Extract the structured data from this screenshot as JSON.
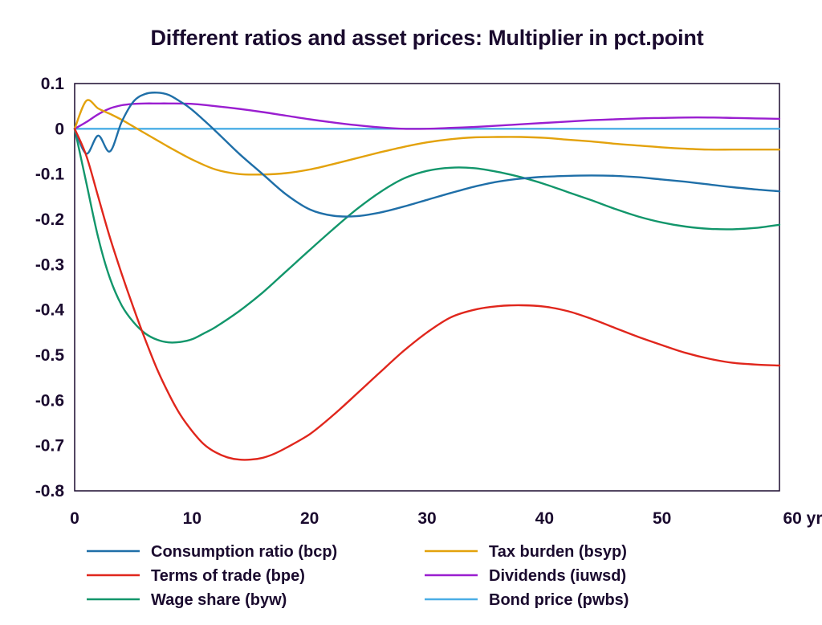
{
  "chart_data": {
    "type": "line",
    "title": "Different ratios and asset prices: Multiplier in pct.point",
    "x_unit_label": "yr",
    "xlim": [
      0,
      60
    ],
    "ylim": [
      -0.8,
      0.1
    ],
    "x_ticks": [
      0,
      10,
      20,
      30,
      40,
      50,
      60
    ],
    "x_tick_labels": [
      "0",
      "10",
      "20",
      "30",
      "40",
      "50",
      "60 yr"
    ],
    "y_ticks": [
      0.1,
      0,
      -0.1,
      -0.2,
      -0.3,
      -0.4,
      -0.5,
      -0.6,
      -0.7,
      -0.8
    ],
    "y_tick_labels": [
      "0.1",
      "0",
      "-0.1",
      "-0.2",
      "-0.3",
      "-0.4",
      "-0.5",
      "-0.6",
      "-0.7",
      "-0.8"
    ],
    "grid": false,
    "zero_line": true,
    "legend_position": "bottom",
    "series": [
      {
        "name": "Consumption ratio (bcp)",
        "color": "#1f6fa8",
        "x": [
          0,
          1,
          2,
          3,
          4,
          5,
          6,
          7,
          8,
          9,
          10,
          12,
          14,
          16,
          18,
          20,
          22,
          24,
          26,
          28,
          30,
          32,
          34,
          36,
          38,
          40,
          42,
          44,
          46,
          48,
          50,
          52,
          54,
          56,
          58,
          60
        ],
        "y": [
          0,
          -0.055,
          -0.015,
          -0.05,
          0.015,
          0.06,
          0.077,
          0.08,
          0.075,
          0.06,
          0.042,
          -0.005,
          -0.055,
          -0.1,
          -0.145,
          -0.178,
          -0.192,
          -0.193,
          -0.185,
          -0.172,
          -0.157,
          -0.142,
          -0.128,
          -0.117,
          -0.11,
          -0.106,
          -0.104,
          -0.103,
          -0.104,
          -0.107,
          -0.112,
          -0.117,
          -0.123,
          -0.129,
          -0.134,
          -0.138
        ]
      },
      {
        "name": "Terms of trade (bpe)",
        "color": "#e0261c",
        "x": [
          0,
          1,
          2,
          3,
          4,
          5,
          6,
          7,
          8,
          9,
          10,
          11,
          12,
          13,
          14,
          15,
          16,
          17,
          18,
          20,
          22,
          24,
          26,
          28,
          30,
          32,
          34,
          36,
          38,
          40,
          42,
          44,
          46,
          48,
          50,
          52,
          54,
          56,
          58,
          60
        ],
        "y": [
          0,
          -0.06,
          -0.15,
          -0.24,
          -0.32,
          -0.395,
          -0.465,
          -0.53,
          -0.585,
          -0.632,
          -0.668,
          -0.697,
          -0.715,
          -0.726,
          -0.731,
          -0.731,
          -0.727,
          -0.718,
          -0.705,
          -0.675,
          -0.633,
          -0.586,
          -0.538,
          -0.491,
          -0.45,
          -0.417,
          -0.4,
          -0.392,
          -0.39,
          -0.393,
          -0.403,
          -0.42,
          -0.44,
          -0.46,
          -0.478,
          -0.495,
          -0.508,
          -0.517,
          -0.521,
          -0.523
        ]
      },
      {
        "name": "Wage share (byw)",
        "color": "#12966b",
        "x": [
          0,
          1,
          2,
          3,
          4,
          5,
          6,
          7,
          8,
          9,
          10,
          11,
          12,
          14,
          16,
          18,
          20,
          22,
          24,
          26,
          28,
          30,
          32,
          34,
          36,
          38,
          40,
          42,
          44,
          46,
          48,
          50,
          52,
          54,
          56,
          58,
          60
        ],
        "y": [
          0,
          -0.12,
          -0.24,
          -0.33,
          -0.39,
          -0.427,
          -0.452,
          -0.466,
          -0.472,
          -0.471,
          -0.465,
          -0.452,
          -0.438,
          -0.403,
          -0.362,
          -0.315,
          -0.268,
          -0.222,
          -0.178,
          -0.14,
          -0.11,
          -0.093,
          -0.086,
          -0.087,
          -0.095,
          -0.107,
          -0.122,
          -0.14,
          -0.158,
          -0.177,
          -0.194,
          -0.207,
          -0.216,
          -0.221,
          -0.222,
          -0.219,
          -0.212
        ]
      },
      {
        "name": "Tax burden (bsyp)",
        "color": "#e3a20c",
        "x": [
          0,
          1,
          2,
          3,
          4,
          5,
          6,
          7,
          8,
          10,
          12,
          14,
          16,
          18,
          20,
          22,
          24,
          26,
          28,
          30,
          32,
          34,
          36,
          38,
          40,
          42,
          44,
          46,
          48,
          50,
          52,
          54,
          56,
          58,
          60
        ],
        "y": [
          0,
          0.062,
          0.045,
          0.033,
          0.02,
          0.005,
          -0.01,
          -0.025,
          -0.04,
          -0.068,
          -0.09,
          -0.1,
          -0.101,
          -0.098,
          -0.09,
          -0.078,
          -0.065,
          -0.052,
          -0.04,
          -0.03,
          -0.023,
          -0.019,
          -0.018,
          -0.018,
          -0.02,
          -0.024,
          -0.028,
          -0.033,
          -0.037,
          -0.041,
          -0.044,
          -0.046,
          -0.046,
          -0.046,
          -0.046
        ]
      },
      {
        "name": "Dividends (iuwsd)",
        "color": "#9a1ed0",
        "x": [
          0,
          1,
          2,
          3,
          4,
          5,
          6,
          7,
          8,
          10,
          12,
          14,
          16,
          18,
          20,
          22,
          24,
          26,
          28,
          30,
          32,
          34,
          36,
          38,
          40,
          42,
          44,
          46,
          48,
          50,
          52,
          54,
          56,
          58,
          60
        ],
        "y": [
          0,
          0.015,
          0.032,
          0.045,
          0.052,
          0.055,
          0.056,
          0.056,
          0.056,
          0.055,
          0.05,
          0.044,
          0.037,
          0.029,
          0.021,
          0.014,
          0.008,
          0.003,
          0.0,
          0.0,
          0.002,
          0.004,
          0.007,
          0.01,
          0.013,
          0.016,
          0.019,
          0.021,
          0.023,
          0.024,
          0.025,
          0.025,
          0.024,
          0.023,
          0.022
        ]
      },
      {
        "name": "Bond price (pwbs)",
        "color": "#4aaee6",
        "x": [
          0,
          60
        ],
        "y": [
          0,
          0
        ]
      }
    ]
  }
}
